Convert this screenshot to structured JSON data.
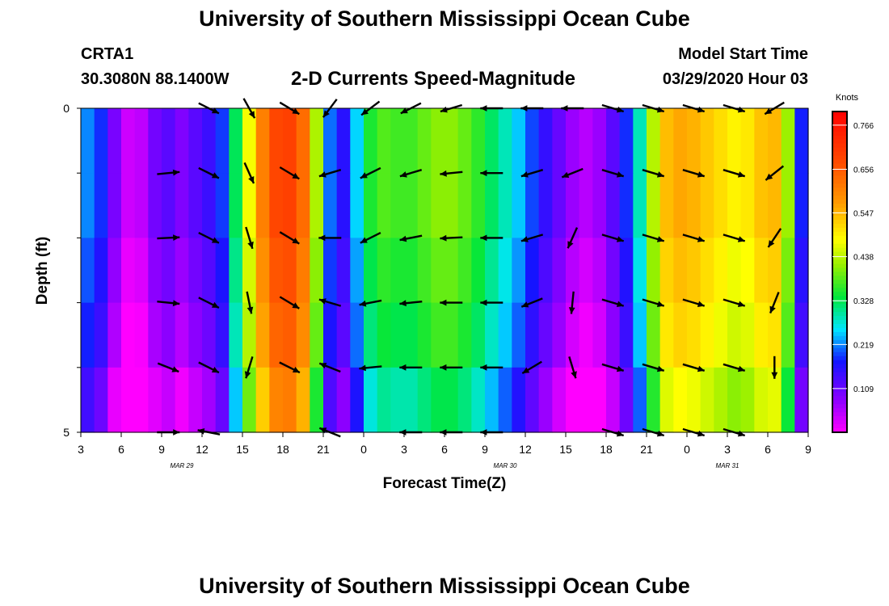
{
  "header": {
    "top_title": "University of Southern Mississippi Ocean Cube",
    "bottom_title": "University of Southern Mississippi Ocean Cube",
    "station": "CRTA1",
    "coords": "30.3080N 88.1400W",
    "plot_title": "2-D Currents Speed-Magnitude",
    "model_label": "Model Start Time",
    "model_time": "03/29/2020 Hour 03"
  },
  "chart_data": {
    "type": "heatmap",
    "title": "2-D Currents Speed-Magnitude",
    "xlabel": "Forecast Time(Z)",
    "ylabel": "Depth (ft)",
    "colorbar_label": "Knots",
    "y_tick_labels": [
      "0",
      "5"
    ],
    "ylim": [
      0,
      5
    ],
    "x_tick_labels": [
      "3",
      "6",
      "9",
      "12",
      "15",
      "18",
      "21",
      "0",
      "3",
      "6",
      "9",
      "12",
      "15",
      "18",
      "21",
      "0",
      "3",
      "6",
      "9"
    ],
    "date_labels": [
      {
        "text": "MAR 29",
        "tick_index": 2.5
      },
      {
        "text": "MAR 30",
        "tick_index": 10.5
      },
      {
        "text": "MAR 31",
        "tick_index": 16.0
      }
    ],
    "colorbar_ticks": [
      "0.766",
      "0.656",
      "0.547",
      "0.438",
      "0.328",
      "0.219",
      "0.109"
    ],
    "colorbar_range": [
      0.0,
      0.8
    ],
    "hours": 54,
    "depth_layers": 5,
    "speed_profile": [
      [
        0,
        0.22
      ],
      [
        1,
        0.22
      ],
      [
        2,
        0.15
      ],
      [
        3,
        0.04
      ],
      [
        4,
        0.03
      ],
      [
        5,
        0.06
      ],
      [
        6,
        0.14
      ],
      [
        7,
        0.1
      ],
      [
        8,
        0.08
      ],
      [
        9,
        0.16
      ],
      [
        10,
        0.13
      ],
      [
        11,
        0.25
      ],
      [
        12,
        0.4
      ],
      [
        13,
        0.55
      ],
      [
        14,
        0.66
      ],
      [
        15,
        0.7
      ],
      [
        16,
        0.68
      ],
      [
        17,
        0.58
      ],
      [
        18,
        0.28
      ],
      [
        19,
        0.14
      ],
      [
        20,
        0.18
      ],
      [
        21,
        0.32
      ],
      [
        22,
        0.38
      ],
      [
        23,
        0.38
      ],
      [
        24,
        0.36
      ],
      [
        25,
        0.38
      ],
      [
        26,
        0.4
      ],
      [
        27,
        0.42
      ],
      [
        28,
        0.4
      ],
      [
        29,
        0.38
      ],
      [
        30,
        0.34
      ],
      [
        31,
        0.3
      ],
      [
        32,
        0.27
      ],
      [
        33,
        0.22
      ],
      [
        34,
        0.17
      ],
      [
        35,
        0.13
      ],
      [
        36,
        0.09
      ],
      [
        37,
        0.05
      ],
      [
        38,
        0.05
      ],
      [
        39,
        0.09
      ],
      [
        40,
        0.15
      ],
      [
        41,
        0.22
      ],
      [
        42,
        0.35
      ],
      [
        43,
        0.52
      ],
      [
        44,
        0.56
      ],
      [
        45,
        0.56
      ],
      [
        46,
        0.54
      ],
      [
        47,
        0.52
      ],
      [
        48,
        0.5
      ],
      [
        49,
        0.48
      ],
      [
        50,
        0.52
      ],
      [
        51,
        0.55
      ],
      [
        52,
        0.54
      ],
      [
        53,
        0.3
      ],
      [
        54,
        0.06
      ]
    ],
    "layer_offsets": [
      0.0,
      0.0,
      -0.02,
      -0.04,
      -0.08
    ],
    "vectors": [
      {
        "hour": 6,
        "dir": [
          [
            0,
            0
          ],
          [
            1,
            -0.1
          ],
          [
            1,
            -0.05
          ],
          [
            1,
            0.1
          ],
          [
            1,
            0.4
          ],
          [
            1,
            0
          ]
        ]
      },
      {
        "hour": 9,
        "dir": [
          [
            1,
            0.5
          ],
          [
            1,
            0.5
          ],
          [
            1,
            0.5
          ],
          [
            1,
            0.5
          ],
          [
            1,
            0.5
          ],
          [
            -1,
            -0.2
          ]
        ]
      },
      {
        "hour": 12,
        "dir": [
          [
            0.5,
            0.9
          ],
          [
            0.4,
            0.9
          ],
          [
            0.3,
            1
          ],
          [
            0.2,
            1
          ],
          [
            -0.3,
            1
          ],
          [
            0,
            0
          ]
        ]
      },
      {
        "hour": 15,
        "dir": [
          [
            1,
            0.6
          ],
          [
            1,
            0.6
          ],
          [
            1,
            0.6
          ],
          [
            1,
            0.6
          ],
          [
            1,
            0.5
          ],
          [
            0,
            0
          ]
        ]
      },
      {
        "hour": 18,
        "dir": [
          [
            -0.6,
            0.8
          ],
          [
            -1,
            0.3
          ],
          [
            -1,
            0
          ],
          [
            -1,
            -0.3
          ],
          [
            -1,
            -0.4
          ],
          [
            -1,
            -0.4
          ]
        ]
      },
      {
        "hour": 21,
        "dir": [
          [
            -0.8,
            0.6
          ],
          [
            -1,
            0.5
          ],
          [
            -1,
            0.5
          ],
          [
            -1,
            0.2
          ],
          [
            -1,
            0.1
          ],
          [
            0,
            0
          ]
        ]
      },
      {
        "hour": 24,
        "dir": [
          [
            -1,
            0.5
          ],
          [
            -1,
            0.3
          ],
          [
            -1,
            0.2
          ],
          [
            -1,
            0.1
          ],
          [
            -1,
            0
          ],
          [
            -1,
            0
          ]
        ]
      },
      {
        "hour": 27,
        "dir": [
          [
            -1,
            0.3
          ],
          [
            -1,
            0.1
          ],
          [
            -1,
            0.05
          ],
          [
            -1,
            0
          ],
          [
            -1,
            0
          ],
          [
            -1,
            0
          ]
        ]
      },
      {
        "hour": 30,
        "dir": [
          [
            -1,
            0
          ],
          [
            -1,
            0
          ],
          [
            -1,
            0
          ],
          [
            -1,
            0
          ],
          [
            -1,
            0
          ],
          [
            -1,
            0
          ]
        ]
      },
      {
        "hour": 33,
        "dir": [
          [
            -1,
            0
          ],
          [
            -1,
            0.3
          ],
          [
            -1,
            0.3
          ],
          [
            -1,
            0.4
          ],
          [
            -1,
            0.6
          ],
          [
            0,
            0
          ]
        ]
      },
      {
        "hour": 36,
        "dir": [
          [
            -1,
            0
          ],
          [
            -1,
            0.4
          ],
          [
            -0.4,
            0.9
          ],
          [
            -0.1,
            1
          ],
          [
            0.3,
            1
          ],
          [
            0,
            0
          ]
        ]
      },
      {
        "hour": 39,
        "dir": [
          [
            1,
            0.3
          ],
          [
            1,
            0.3
          ],
          [
            1,
            0.3
          ],
          [
            1,
            0.3
          ],
          [
            1,
            0.3
          ],
          [
            1,
            0.3
          ]
        ]
      },
      {
        "hour": 42,
        "dir": [
          [
            1,
            0.3
          ],
          [
            1,
            0.3
          ],
          [
            1,
            0.3
          ],
          [
            1,
            0.3
          ],
          [
            1,
            0.3
          ],
          [
            1,
            0.3
          ]
        ]
      },
      {
        "hour": 45,
        "dir": [
          [
            1,
            0.3
          ],
          [
            1,
            0.3
          ],
          [
            1,
            0.3
          ],
          [
            1,
            0.3
          ],
          [
            1,
            0.3
          ],
          [
            1,
            0.3
          ]
        ]
      },
      {
        "hour": 48,
        "dir": [
          [
            1,
            0.3
          ],
          [
            1,
            0.3
          ],
          [
            1,
            0.3
          ],
          [
            1,
            0.3
          ],
          [
            1,
            0.3
          ],
          [
            1,
            0.3
          ]
        ]
      },
      {
        "hour": 51,
        "dir": [
          [
            -1,
            0.6
          ],
          [
            -1,
            0.8
          ],
          [
            -0.6,
            0.9
          ],
          [
            -0.4,
            1
          ],
          [
            0,
            1
          ],
          [
            0,
            0
          ]
        ]
      }
    ]
  }
}
